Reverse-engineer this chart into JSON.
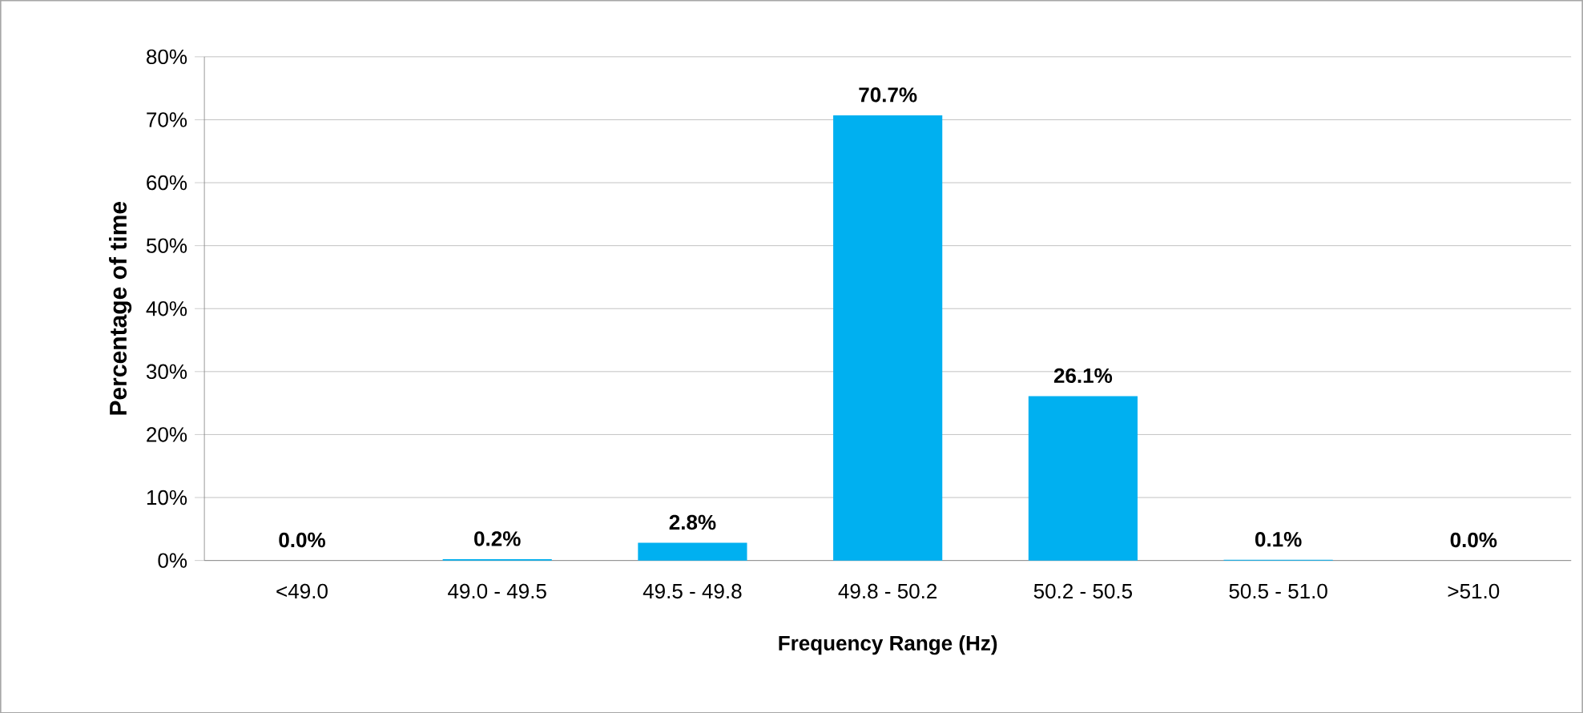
{
  "chart_data": {
    "type": "bar",
    "xlabel": "Frequency Range (Hz)",
    "ylabel": "Percentage of time",
    "categories": [
      "<49.0",
      "49.0 - 49.5",
      "49.5 - 49.8",
      "49.8 - 50.2",
      "50.2 - 50.5",
      "50.5 - 51.0",
      ">51.0"
    ],
    "values": [
      0.0,
      0.2,
      2.8,
      70.7,
      26.1,
      0.1,
      0.0
    ],
    "value_labels": [
      "0.0%",
      "0.2%",
      "2.8%",
      "70.7%",
      "26.1%",
      "0.1%",
      "0.0%"
    ],
    "color": "#00b0f0",
    "ylim": [
      0,
      80
    ],
    "yticks": [
      {
        "value": 0,
        "label": "0%"
      },
      {
        "value": 10,
        "label": "10%"
      },
      {
        "value": 20,
        "label": "20%"
      },
      {
        "value": 30,
        "label": "30%"
      },
      {
        "value": 40,
        "label": "40%"
      },
      {
        "value": 50,
        "label": "50%"
      },
      {
        "value": 60,
        "label": "60%"
      },
      {
        "value": 70,
        "label": "70%"
      },
      {
        "value": 80,
        "label": "80%"
      }
    ],
    "grid": "y"
  }
}
